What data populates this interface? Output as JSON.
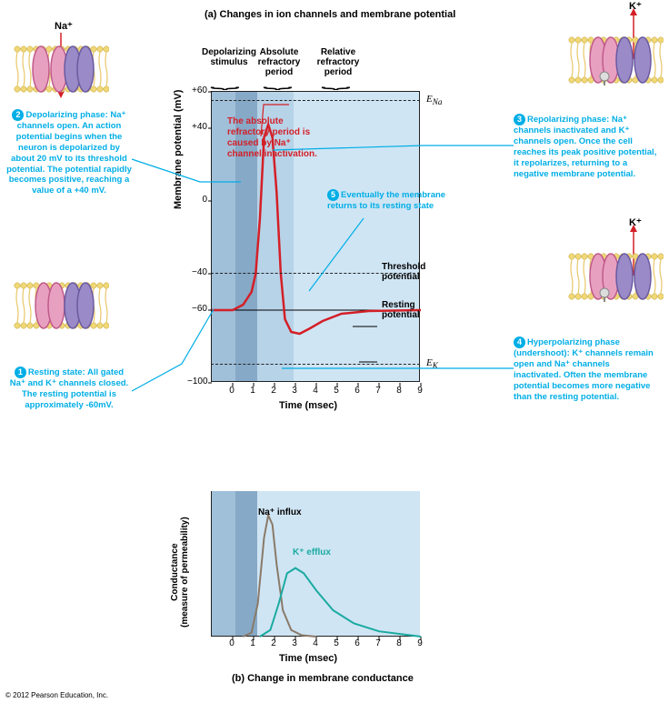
{
  "titles": {
    "a": "(a) Changes in ion channels and membrane potential",
    "b": "(b) Change in membrane conductance"
  },
  "copyright": "© 2012 Pearson Education, Inc.",
  "chart_a": {
    "ylabel": "Membrane potential (mV)",
    "xlabel": "Time (msec)",
    "ylim": [
      -100,
      60
    ],
    "xlim": [
      -1,
      9
    ],
    "yticks": [
      60,
      40,
      0,
      -40,
      -60,
      -100
    ],
    "ytick_labels": [
      "+60",
      "+40",
      "0",
      "−40",
      "−60",
      "−100"
    ],
    "xticks": [
      0,
      1,
      2,
      3,
      4,
      5,
      6,
      7,
      8,
      9
    ],
    "e_na": {
      "y": 55,
      "label": "E",
      "sub": "Na"
    },
    "e_k": {
      "y": -90,
      "label": "E",
      "sub": "K"
    },
    "threshold": {
      "y": -40,
      "label": "Threshold potential"
    },
    "resting": {
      "y": -60,
      "label": "Resting potential"
    },
    "segments": {
      "depol": "Depolarizing stimulus",
      "abs": "Absolute refractory period",
      "rel": "Relative refractory period"
    },
    "action_potential": {
      "color": "#d41f27",
      "points": [
        [
          -1,
          -60
        ],
        [
          0,
          -60
        ],
        [
          0.5,
          -57
        ],
        [
          0.9,
          -50
        ],
        [
          1.1,
          -40
        ],
        [
          1.3,
          -10
        ],
        [
          1.5,
          35
        ],
        [
          1.7,
          42
        ],
        [
          1.9,
          35
        ],
        [
          2.1,
          5
        ],
        [
          2.3,
          -40
        ],
        [
          2.5,
          -65
        ],
        [
          2.8,
          -72
        ],
        [
          3.2,
          -73
        ],
        [
          3.7,
          -70
        ],
        [
          4.3,
          -66
        ],
        [
          5.2,
          -62
        ],
        [
          6.5,
          -60.5
        ],
        [
          9,
          -60
        ]
      ]
    },
    "inactivation_note": "The absolute refractory period is caused by Na⁺ channel inactivation."
  },
  "chart_b": {
    "ylabel_line1": "Conductance",
    "ylabel_line2": "(measure of permeability)",
    "xlabel": "Time (msec)",
    "xticks": [
      0,
      1,
      2,
      3,
      4,
      5,
      6,
      7,
      8,
      9
    ],
    "na": {
      "label": "Na⁺ influx",
      "color": "#8a7a68",
      "points": [
        [
          0.5,
          0
        ],
        [
          0.9,
          3
        ],
        [
          1.2,
          25
        ],
        [
          1.5,
          75
        ],
        [
          1.7,
          92
        ],
        [
          1.9,
          85
        ],
        [
          2.1,
          55
        ],
        [
          2.4,
          20
        ],
        [
          2.8,
          5
        ],
        [
          3.3,
          1
        ],
        [
          4,
          0
        ]
      ]
    },
    "k": {
      "label": "K⁺ efflux",
      "color": "#1aaaa0",
      "points": [
        [
          1.3,
          0
        ],
        [
          1.8,
          5
        ],
        [
          2.2,
          25
        ],
        [
          2.6,
          48
        ],
        [
          3.0,
          52
        ],
        [
          3.4,
          48
        ],
        [
          4.0,
          35
        ],
        [
          4.8,
          20
        ],
        [
          5.8,
          10
        ],
        [
          7.0,
          4
        ],
        [
          8.5,
          1
        ],
        [
          9,
          0
        ]
      ]
    }
  },
  "annotations": {
    "n1": "Resting state: All gated Na⁺ and K⁺ channels closed. The resting potential is approximately -60mV.",
    "n2": "Depolarizing phase: Na⁺ channels open. An action potential begins when the neuron is depolarized by about 20 mV to its threshold potential. The potential rapidly becomes positive, reaching a value of a +40 mV.",
    "n3": "Repolarizing phase: Na⁺ channels inactivated and K⁺ channels open. Once the cell reaches its peak positive potential, it repolarizes, returning to a negative membrane potential.",
    "n4": "Hyperpolarizing phase (undershoot): K⁺ channels remain open and Na⁺ channels inactivated. Often the membrane potential becomes more negative than the resting potential.",
    "n5": "Eventually the membrane returns to its resting state"
  },
  "ions": {
    "na": "Na⁺",
    "k": "K⁺"
  },
  "colors": {
    "bg": "#cfe5f4",
    "band_dark": "#86a9c7",
    "band_med": "#a0bfd9",
    "band_light": "#b7d3e8",
    "anno": "#00aee6",
    "red": "#d41f27",
    "channel_pink": "#e8a0c0",
    "channel_pink_edge": "#c05a8a",
    "channel_purple": "#9a8ac8",
    "channel_purple_edge": "#6a5aa0",
    "lipid": "#e8c86a",
    "lipid_head": "#f0d878"
  }
}
